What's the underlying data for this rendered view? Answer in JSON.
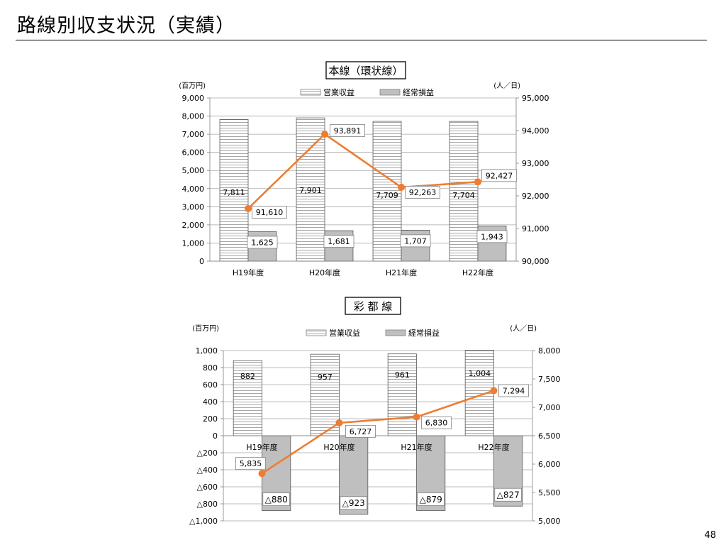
{
  "page": {
    "title": "路線別収支状況（実績）",
    "page_number": "48"
  },
  "colors": {
    "line": "#ED7D31",
    "bar_operating_fill": "#ffffff",
    "bar_operating_stripe": "#a6a6a6",
    "bar_ordinary_fill": "#bfbfbf",
    "grid": "#a6a6a6"
  },
  "chart_data": [
    {
      "type": "bar",
      "title": "本線（環状線）",
      "left_unit": "(百万円)",
      "right_unit": "(人／日)",
      "categories": [
        "H19年度",
        "H20年度",
        "H21年度",
        "H22年度"
      ],
      "series": [
        {
          "name": "営業収益",
          "kind": "bar",
          "axis": "left",
          "values": [
            7811,
            7901,
            7709,
            7704
          ],
          "labels": [
            "7,811",
            "7,901",
            "7,709",
            "7,704"
          ]
        },
        {
          "name": "経常損益",
          "kind": "bar",
          "axis": "left",
          "values": [
            1625,
            1681,
            1707,
            1943
          ],
          "labels": [
            "1,625",
            "1,681",
            "1,707",
            "1,943"
          ]
        },
        {
          "name": "",
          "kind": "line",
          "axis": "right",
          "values": [
            91610,
            93891,
            92263,
            92427
          ],
          "labels": [
            "91,610",
            "93,891",
            "92,263",
            "92,427"
          ]
        }
      ],
      "ylim": [
        0,
        9000
      ],
      "yticks": [
        0,
        1000,
        2000,
        3000,
        4000,
        5000,
        6000,
        7000,
        8000,
        9000
      ],
      "ytick_labels": [
        "0",
        "1,000",
        "2,000",
        "3,000",
        "4,000",
        "5,000",
        "6,000",
        "7,000",
        "8,000",
        "9,000"
      ],
      "y2lim": [
        90000,
        95000
      ],
      "y2ticks": [
        90000,
        91000,
        92000,
        93000,
        94000,
        95000
      ],
      "y2tick_labels": [
        "90,000",
        "91,000",
        "92,000",
        "93,000",
        "94,000",
        "95,000"
      ],
      "grid": true,
      "legend_position": "top"
    },
    {
      "type": "bar",
      "title": "彩 都 線",
      "left_unit": "(百万円)",
      "right_unit": "(人／日)",
      "categories": [
        "H19年度",
        "H20年度",
        "H21年度",
        "H22年度"
      ],
      "series": [
        {
          "name": "営業収益",
          "kind": "bar",
          "axis": "left",
          "values": [
            882,
            957,
            961,
            1004
          ],
          "labels": [
            "882",
            "957",
            "961",
            "1,004"
          ]
        },
        {
          "name": "経常損益",
          "kind": "bar",
          "axis": "left",
          "values": [
            -880,
            -923,
            -879,
            -827
          ],
          "labels": [
            "△880",
            "△923",
            "△879",
            "△827"
          ]
        },
        {
          "name": "",
          "kind": "line",
          "axis": "right",
          "values": [
            5835,
            6727,
            6830,
            7294
          ],
          "labels": [
            "5,835",
            "6,727",
            "6,830",
            "7,294"
          ]
        }
      ],
      "ylim": [
        -1000,
        1000
      ],
      "yticks": [
        -1000,
        -800,
        -600,
        -400,
        -200,
        0,
        200,
        400,
        600,
        800,
        1000
      ],
      "ytick_labels": [
        "△1,000",
        "△800",
        "△600",
        "△400",
        "△200",
        "0",
        "200",
        "400",
        "600",
        "800",
        "1,000"
      ],
      "y2lim": [
        5000,
        8000
      ],
      "y2ticks": [
        5000,
        5500,
        6000,
        6500,
        7000,
        7500,
        8000
      ],
      "y2tick_labels": [
        "5,000",
        "5,500",
        "6,000",
        "6,500",
        "7,000",
        "7,500",
        "8,000"
      ],
      "grid": true,
      "legend_position": "top"
    }
  ]
}
